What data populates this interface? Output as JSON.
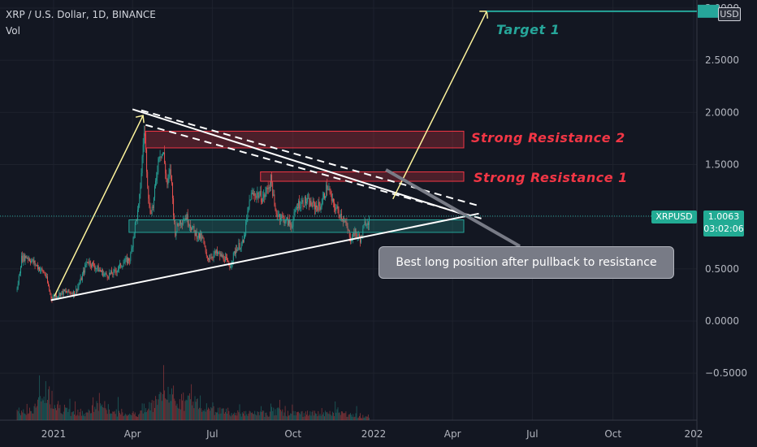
{
  "header": {
    "title": "XRP / U.S. Dollar, 1D, BINANCE",
    "volume_label": "Vol",
    "currency_tag": "USD"
  },
  "chart_data": {
    "type": "candlestick",
    "symbol": "XRPUSD",
    "y_ticks": [
      "3.0000",
      "2.5000",
      "2.0000",
      "1.5000",
      "1.0000",
      "0.5000",
      "0.0000",
      "−0.5000"
    ],
    "y_tick_values": [
      3.0,
      2.5,
      2.0,
      1.5,
      1.0,
      0.5,
      0.0,
      -0.5
    ],
    "ylim": [
      -0.98,
      3.05
    ],
    "x_ticks": [
      "2021",
      "Apr",
      "Jul",
      "Oct",
      "2022",
      "Apr",
      "Jul",
      "Oct",
      "202"
    ],
    "x_tick_dates": [
      "2021-01-01",
      "2021-04-01",
      "2021-07-01",
      "2021-10-01",
      "2022-01-01",
      "2022-04-01",
      "2022-07-01",
      "2022-10-01",
      "2023-01-01"
    ],
    "price_path": [
      [
        "2020-11-20",
        0.3
      ],
      [
        "2020-11-25",
        0.6
      ],
      [
        "2020-12-01",
        0.62
      ],
      [
        "2020-12-10",
        0.55
      ],
      [
        "2020-12-22",
        0.45
      ],
      [
        "2020-12-29",
        0.22
      ],
      [
        "2021-01-05",
        0.25
      ],
      [
        "2021-01-12",
        0.28
      ],
      [
        "2021-01-25",
        0.27
      ],
      [
        "2021-02-01",
        0.4
      ],
      [
        "2021-02-08",
        0.58
      ],
      [
        "2021-02-20",
        0.5
      ],
      [
        "2021-03-01",
        0.44
      ],
      [
        "2021-03-10",
        0.46
      ],
      [
        "2021-03-20",
        0.55
      ],
      [
        "2021-03-29",
        0.6
      ],
      [
        "2021-04-03",
        0.9
      ],
      [
        "2021-04-08",
        1.1
      ],
      [
        "2021-04-12",
        1.6
      ],
      [
        "2021-04-14",
        1.86
      ],
      [
        "2021-04-17",
        1.45
      ],
      [
        "2021-04-20",
        1.05
      ],
      [
        "2021-04-24",
        1.1
      ],
      [
        "2021-04-28",
        1.4
      ],
      [
        "2021-05-01",
        1.62
      ],
      [
        "2021-05-06",
        1.6
      ],
      [
        "2021-05-10",
        1.3
      ],
      [
        "2021-05-14",
        1.45
      ],
      [
        "2021-05-19",
        0.85
      ],
      [
        "2021-05-24",
        0.95
      ],
      [
        "2021-06-01",
        1.0
      ],
      [
        "2021-06-10",
        0.85
      ],
      [
        "2021-06-20",
        0.78
      ],
      [
        "2021-06-24",
        0.6
      ],
      [
        "2021-07-05",
        0.65
      ],
      [
        "2021-07-15",
        0.6
      ],
      [
        "2021-07-20",
        0.52
      ],
      [
        "2021-07-28",
        0.7
      ],
      [
        "2021-08-05",
        0.75
      ],
      [
        "2021-08-13",
        1.2
      ],
      [
        "2021-08-20",
        1.22
      ],
      [
        "2021-08-28",
        1.18
      ],
      [
        "2021-09-06",
        1.36
      ],
      [
        "2021-09-10",
        1.05
      ],
      [
        "2021-09-20",
        0.98
      ],
      [
        "2021-09-29",
        0.92
      ],
      [
        "2021-10-06",
        1.12
      ],
      [
        "2021-10-15",
        1.15
      ],
      [
        "2021-10-25",
        1.1
      ],
      [
        "2021-11-01",
        1.1
      ],
      [
        "2021-11-09",
        1.3
      ],
      [
        "2021-11-15",
        1.12
      ],
      [
        "2021-11-26",
        1.0
      ],
      [
        "2021-12-03",
        0.85
      ],
      [
        "2021-12-04",
        0.78
      ],
      [
        "2021-12-10",
        0.85
      ],
      [
        "2021-12-17",
        0.78
      ],
      [
        "2021-12-22",
        0.95
      ],
      [
        "2021-12-27",
        0.97
      ]
    ],
    "volume_profile": [
      0.3,
      0.2,
      0.4,
      0.9,
      0.6,
      0.3,
      0.2,
      0.2,
      0.3,
      0.5,
      0.3,
      0.2,
      0.2,
      0.2,
      0.3,
      0.6,
      0.8,
      0.7,
      0.5,
      0.6,
      0.4,
      0.3,
      0.3,
      0.2,
      0.2,
      0.2,
      0.2,
      0.2,
      0.3,
      0.2,
      0.2,
      0.2,
      0.2,
      0.2,
      0.2,
      0.2,
      0.2,
      0.1,
      0.15
    ],
    "annotations": {
      "target_label": "Target 1",
      "resistance_2_label": "Strong Resistance 2",
      "resistance_1_label": "Strong Resistance 1",
      "callout": "Best long position after pullback to resistance",
      "resistance_2_zone": [
        1.66,
        1.82
      ],
      "resistance_1_zone": [
        1.34,
        1.43
      ],
      "support_zone": [
        0.85,
        0.97
      ],
      "target_level": 2.97
    },
    "last_price": "1.0063",
    "countdown": "03:02:06",
    "last_price_value": 1.0063,
    "colors": {
      "up": "#26a69a",
      "down": "#ef5350",
      "background": "#131722",
      "trendline": "#ffffff",
      "impulse_arrow": "#fff59d",
      "target": "#26a69a",
      "resistance": "#f23645"
    }
  }
}
